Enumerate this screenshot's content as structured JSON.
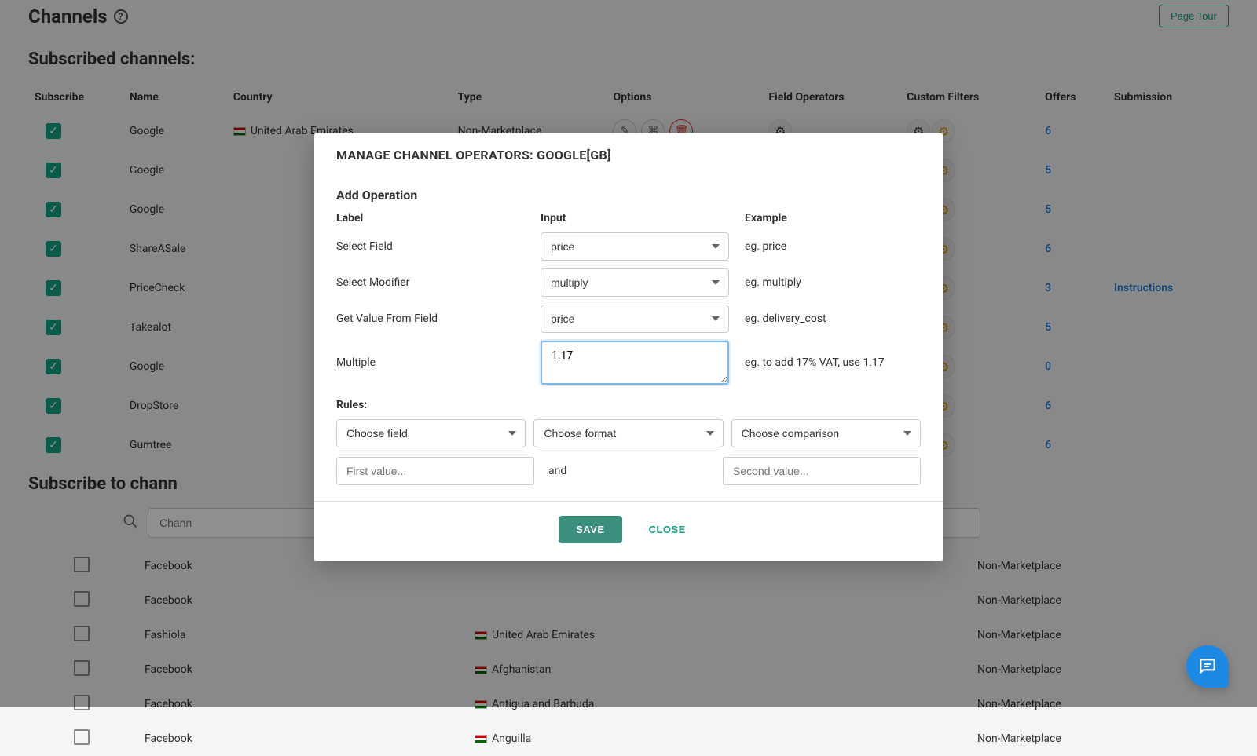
{
  "header": {
    "title": "Channels",
    "page_tour": "Page Tour"
  },
  "subscribed": {
    "title": "Subscribed channels:",
    "columns": {
      "subscribe": "Subscribe",
      "name": "Name",
      "country": "Country",
      "type": "Type",
      "options": "Options",
      "field_operators": "Field Operators",
      "custom_filters": "Custom Filters",
      "offers": "Offers",
      "submission": "Submission"
    },
    "rows": [
      {
        "name": "Google",
        "country": "United Arab Emirates",
        "type": "Non-Marketplace",
        "offers": "6",
        "submission": ""
      },
      {
        "name": "Google",
        "country": "",
        "type": "",
        "offers": "5",
        "submission": ""
      },
      {
        "name": "Google",
        "country": "",
        "type": "",
        "offers": "5",
        "submission": ""
      },
      {
        "name": "ShareASale",
        "country": "",
        "type": "",
        "offers": "6",
        "submission": ""
      },
      {
        "name": "PriceCheck",
        "country": "",
        "type": "",
        "offers": "3",
        "submission": "Instructions"
      },
      {
        "name": "Takealot",
        "country": "",
        "type": "",
        "offers": "5",
        "submission": ""
      },
      {
        "name": "Google",
        "country": "",
        "type": "",
        "offers": "0",
        "submission": ""
      },
      {
        "name": "DropStore",
        "country": "",
        "type": "",
        "offers": "6",
        "submission": ""
      },
      {
        "name": "Gumtree",
        "country": "",
        "type": "",
        "offers": "6",
        "submission": ""
      }
    ]
  },
  "subscribe_to": {
    "title": "Subscribe to chann",
    "search_placeholder": "Chann",
    "rows": [
      {
        "name": "Facebook",
        "country": "",
        "type": "Non-Marketplace"
      },
      {
        "name": "Facebook",
        "country": "",
        "type": "Non-Marketplace"
      },
      {
        "name": "Fashiola",
        "country": "United Arab Emirates",
        "type": "Non-Marketplace"
      },
      {
        "name": "Facebook",
        "country": "Afghanistan",
        "type": "Non-Marketplace"
      },
      {
        "name": "Facebook",
        "country": "Antigua and Barbuda",
        "type": "Non-Marketplace"
      },
      {
        "name": "Facebook",
        "country": "Anguilla",
        "type": "Non-Marketplace"
      }
    ]
  },
  "modal": {
    "title": "MANAGE CHANNEL OPERATORS: GOOGLE[GB]",
    "add_operation": "Add Operation",
    "headers": {
      "label": "Label",
      "input": "Input",
      "example": "Example"
    },
    "rows": {
      "select_field": {
        "label": "Select Field",
        "value": "price",
        "example": "eg. price"
      },
      "select_modifier": {
        "label": "Select Modifier",
        "value": "multiply",
        "example": "eg. multiply"
      },
      "get_value": {
        "label": "Get Value From Field",
        "value": "price",
        "example": "eg. delivery_cost"
      },
      "multiple": {
        "label": "Multiple",
        "value": "1.17",
        "example": "eg. to add 17% VAT, use 1.17"
      }
    },
    "rules_title": "Rules:",
    "rules": {
      "choose_field": "Choose field",
      "choose_format": "Choose format",
      "choose_comparison": "Choose comparison",
      "first_value_placeholder": "First value...",
      "and": "and",
      "second_value_placeholder": "Second value..."
    },
    "save": "SAVE",
    "close": "CLOSE"
  }
}
